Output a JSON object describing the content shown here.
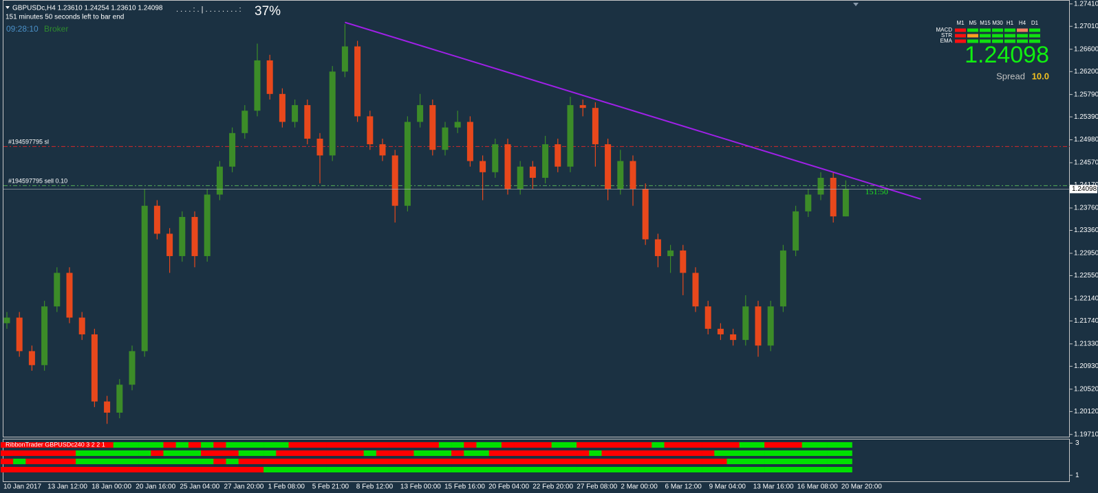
{
  "chart_data": {
    "type": "candlestick",
    "symbol_info": "GBPUSDc,H4  1.23610 1.24254 1.23610 1.24098",
    "timer_text": "151 minutes 50 seconds left to bar end",
    "clock": "09:28:10",
    "broker": "Broker",
    "progress_bar": ". . . . : . | . . . . . . . . :",
    "progress_pct": "37%",
    "up_color": "#3c8c28",
    "down_color": "#e8481c",
    "open": [
      1.217,
      1.218,
      1.212,
      1.2095,
      1.22,
      1.226,
      1.218,
      1.215,
      1.203,
      1.201,
      1.206,
      1.212,
      1.238,
      1.233,
      1.229,
      1.236,
      1.229,
      1.24,
      1.245,
      1.251,
      1.255,
      1.264,
      1.258,
      1.253,
      1.256,
      1.25,
      1.247,
      1.262,
      1.2665,
      1.254,
      1.249,
      1.247,
      1.238,
      1.253,
      1.256,
      1.248,
      1.252,
      1.253,
      1.246,
      1.244,
      1.249,
      1.241,
      1.245,
      1.243,
      1.249,
      1.245,
      1.256,
      1.2555,
      1.249,
      1.241,
      1.246,
      1.241,
      1.232,
      1.229,
      1.23,
      1.226,
      1.22,
      1.216,
      1.215,
      1.214,
      1.22,
      1.213,
      1.22,
      1.23,
      1.237,
      1.24,
      1.243,
      1.2361
    ],
    "high": [
      1.219,
      1.219,
      1.213,
      1.221,
      1.227,
      1.227,
      1.219,
      1.216,
      1.204,
      1.207,
      1.213,
      1.241,
      1.239,
      1.234,
      1.237,
      1.237,
      1.241,
      1.246,
      1.252,
      1.256,
      1.267,
      1.265,
      1.259,
      1.257,
      1.257,
      1.251,
      1.263,
      1.2705,
      1.2675,
      1.255,
      1.25,
      1.248,
      1.254,
      1.258,
      1.257,
      1.253,
      1.255,
      1.254,
      1.247,
      1.25,
      1.25,
      1.246,
      1.246,
      1.2505,
      1.25,
      1.2575,
      1.257,
      1.2565,
      1.25,
      1.248,
      1.247,
      1.242,
      1.233,
      1.231,
      1.231,
      1.227,
      1.221,
      1.217,
      1.216,
      1.222,
      1.221,
      1.221,
      1.231,
      1.238,
      1.241,
      1.244,
      1.244,
      1.24254
    ],
    "low": [
      1.216,
      1.211,
      1.2085,
      1.2085,
      1.219,
      1.217,
      1.214,
      1.202,
      1.199,
      1.2,
      1.205,
      1.211,
      1.232,
      1.226,
      1.228,
      1.227,
      1.228,
      1.239,
      1.244,
      1.25,
      1.254,
      1.257,
      1.252,
      1.252,
      1.249,
      1.242,
      1.246,
      1.261,
      1.253,
      1.248,
      1.246,
      1.235,
      1.237,
      1.252,
      1.247,
      1.247,
      1.251,
      1.245,
      1.239,
      1.243,
      1.24,
      1.24,
      1.241,
      1.242,
      1.244,
      1.244,
      1.254,
      1.245,
      1.239,
      1.24,
      1.238,
      1.231,
      1.227,
      1.226,
      1.222,
      1.219,
      1.215,
      1.214,
      1.213,
      1.213,
      1.211,
      1.212,
      1.219,
      1.229,
      1.236,
      1.239,
      1.235,
      1.2361
    ],
    "close": [
      1.218,
      1.212,
      1.2095,
      1.22,
      1.226,
      1.218,
      1.215,
      1.203,
      1.201,
      1.206,
      1.212,
      1.238,
      1.233,
      1.229,
      1.236,
      1.229,
      1.24,
      1.245,
      1.251,
      1.255,
      1.264,
      1.258,
      1.253,
      1.256,
      1.25,
      1.247,
      1.262,
      1.2665,
      1.254,
      1.249,
      1.247,
      1.238,
      1.253,
      1.256,
      1.248,
      1.252,
      1.253,
      1.246,
      1.244,
      1.249,
      1.241,
      1.245,
      1.243,
      1.249,
      1.245,
      1.256,
      1.2555,
      1.249,
      1.241,
      1.246,
      1.241,
      1.232,
      1.229,
      1.23,
      1.226,
      1.22,
      1.216,
      1.215,
      1.214,
      1.22,
      1.213,
      1.22,
      1.23,
      1.237,
      1.24,
      1.243,
      1.2361,
      1.24098
    ],
    "x_labels": [
      "10 Jan 2017",
      "13 Jan 12:00",
      "18 Jan 00:00",
      "20 Jan 16:00",
      "25 Jan 04:00",
      "27 Jan 20:00",
      "1 Feb 08:00",
      "5 Feb 21:00",
      "8 Feb 12:00",
      "13 Feb 00:00",
      "15 Feb 16:00",
      "20 Feb 04:00",
      "22 Feb 20:00",
      "27 Feb 08:00",
      "2 Mar 00:00",
      "6 Mar 12:00",
      "9 Mar 04:00",
      "13 Mar 16:00",
      "16 Mar 08:00",
      "20 Mar 20:00"
    ],
    "ylim": [
      1.1967,
      1.2748
    ],
    "yticks": [
      {
        "value": 1.2741,
        "label": "1.27410"
      },
      {
        "value": 1.2701,
        "label": "1.27010"
      },
      {
        "value": 1.266,
        "label": "1.26600"
      },
      {
        "value": 1.262,
        "label": "1.26200"
      },
      {
        "value": 1.2579,
        "label": "1.25790"
      },
      {
        "value": 1.2539,
        "label": "1.25390"
      },
      {
        "value": 1.2498,
        "label": "1.24980"
      },
      {
        "value": 1.2457,
        "label": "1.24570"
      },
      {
        "value": 1.2417,
        "label": "1.24170"
      },
      {
        "value": 1.2376,
        "label": "1.23760"
      },
      {
        "value": 1.2336,
        "label": "1.23360"
      },
      {
        "value": 1.2295,
        "label": "1.22950"
      },
      {
        "value": 1.2255,
        "label": "1.22550"
      },
      {
        "value": 1.2214,
        "label": "1.22140"
      },
      {
        "value": 1.2174,
        "label": "1.21740"
      },
      {
        "value": 1.2133,
        "label": "1.21330"
      },
      {
        "value": 1.2093,
        "label": "1.20930"
      },
      {
        "value": 1.2052,
        "label": "1.20520"
      },
      {
        "value": 1.2012,
        "label": "1.20120"
      },
      {
        "value": 1.1971,
        "label": "1.19710"
      }
    ],
    "current_price": 1.24098,
    "levels": [
      {
        "label": "#194597795 sl",
        "value": 1.2486,
        "color": "#d8282a"
      },
      {
        "label": "#194597795 sell 0.10",
        "value": 1.2416,
        "color": "#58b058"
      }
    ],
    "trendline": {
      "x": [
        27,
        73
      ],
      "y": [
        1.2708,
        1.2392
      ],
      "color": "#a020e8"
    },
    "countdown": "151:50",
    "ribbon": {
      "title": "RibbonTrader GBPUSDc240 3 2 2 1",
      "colors": [
        "#ff0000",
        "#00e000"
      ],
      "ylim": [
        0.58,
        3.23
      ],
      "yticks": [
        3,
        1
      ],
      "rows": [
        [
          0,
          0,
          0,
          0,
          0,
          0,
          0,
          0,
          0,
          1,
          1,
          1,
          1,
          0,
          1,
          0,
          1,
          0,
          1,
          1,
          1,
          1,
          1,
          0,
          0,
          0,
          0,
          0,
          0,
          0,
          0,
          0,
          0,
          0,
          0,
          1,
          1,
          0,
          1,
          1,
          0,
          0,
          0,
          0,
          1,
          1,
          0,
          0,
          0,
          0,
          0,
          0,
          1,
          0,
          0,
          0,
          0,
          0,
          0,
          1,
          1,
          0,
          0,
          0,
          1,
          1,
          1,
          1
        ],
        [
          0,
          0,
          0,
          0,
          0,
          0,
          1,
          1,
          1,
          1,
          1,
          1,
          0,
          1,
          1,
          1,
          0,
          0,
          0,
          1,
          1,
          1,
          0,
          0,
          0,
          0,
          0,
          0,
          0,
          1,
          0,
          0,
          0,
          1,
          1,
          1,
          0,
          1,
          1,
          0,
          0,
          0,
          0,
          0,
          0,
          0,
          0,
          1,
          0,
          0,
          0,
          0,
          0,
          0,
          0,
          0,
          0,
          1,
          1,
          1,
          1,
          1,
          1,
          1,
          1,
          1,
          1,
          1
        ],
        [
          0,
          1,
          0,
          0,
          0,
          0,
          1,
          1,
          1,
          1,
          1,
          1,
          1,
          1,
          1,
          1,
          1,
          0,
          1,
          0,
          0,
          0,
          0,
          0,
          0,
          0,
          0,
          0,
          0,
          0,
          0,
          0,
          0,
          0,
          0,
          0,
          0,
          0,
          0,
          0,
          0,
          0,
          0,
          0,
          0,
          0,
          0,
          0,
          0,
          0,
          0,
          0,
          0,
          0,
          0,
          0,
          0,
          0,
          1,
          1,
          1,
          1,
          1,
          1,
          1,
          1,
          1,
          1
        ],
        [
          0,
          0,
          0,
          0,
          0,
          0,
          0,
          0,
          0,
          0,
          0,
          0,
          0,
          0,
          0,
          0,
          0,
          0,
          0,
          0,
          0,
          1,
          1,
          1,
          1,
          1,
          1,
          1,
          1,
          1,
          1,
          1,
          1,
          1,
          1,
          1,
          1,
          1,
          1,
          1,
          1,
          1,
          1,
          1,
          1,
          1,
          1,
          1,
          1,
          1,
          1,
          1,
          1,
          1,
          1,
          1,
          1,
          1,
          1,
          1,
          1,
          1,
          1,
          1,
          1,
          1,
          1,
          1
        ]
      ]
    }
  },
  "panel": {
    "timeframes": [
      "M1",
      "M5",
      "M15",
      "M30",
      "H1",
      "H4",
      "D1"
    ],
    "rows": [
      {
        "name": "MACD",
        "colors": [
          "#ff1010",
          "#10e010",
          "#10e010",
          "#10e010",
          "#10e010",
          "#f08060",
          "#10e010"
        ]
      },
      {
        "name": "STR",
        "colors": [
          "#ff1010",
          "#ffa020",
          "#10e010",
          "#10e010",
          "#10e010",
          "#10e010",
          "#10e010"
        ]
      },
      {
        "name": "EMA",
        "colors": [
          "#ff1010",
          "#10e010",
          "#10e010",
          "#10e010",
          "#10e010",
          "#10e010",
          "#10e010"
        ]
      }
    ],
    "price": "1.24098",
    "spread_label": "Spread",
    "spread": "10.0"
  }
}
